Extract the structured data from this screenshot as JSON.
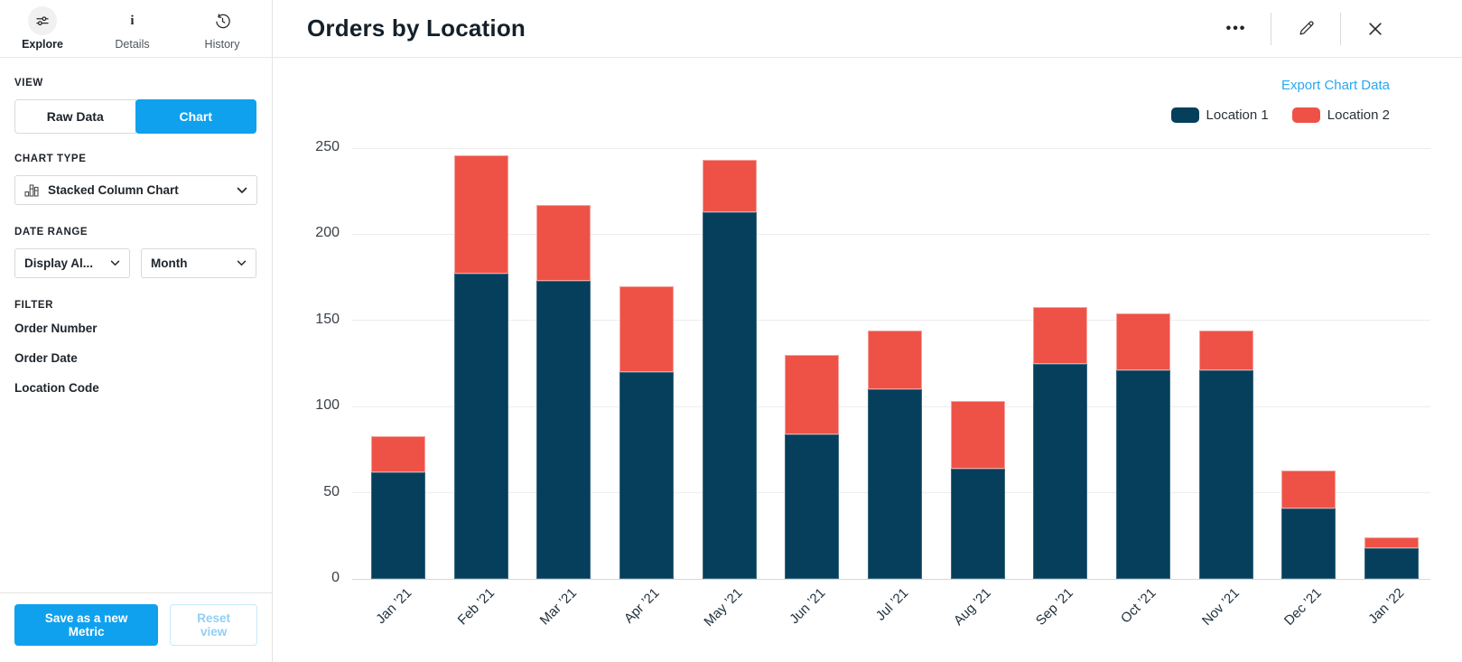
{
  "header": {
    "tabs": [
      {
        "id": "explore",
        "label": "Explore"
      },
      {
        "id": "details",
        "label": "Details"
      },
      {
        "id": "history",
        "label": "History"
      }
    ],
    "title": "Orders by Location"
  },
  "sidebar": {
    "view": {
      "heading": "VIEW",
      "raw_data_label": "Raw Data",
      "chart_label": "Chart",
      "selected": "Chart"
    },
    "chart_type": {
      "heading": "CHART TYPE",
      "selected": "Stacked Column Chart"
    },
    "date_range": {
      "heading": "DATE RANGE",
      "display_selected": "Display Al...",
      "granularity_selected": "Month"
    },
    "filter": {
      "heading": "FILTER",
      "items": [
        "Order Number",
        "Order Date",
        "Location Code"
      ]
    },
    "footer": {
      "save_label": "Save as a new Metric",
      "reset_label": "Reset view"
    }
  },
  "chart": {
    "export_label": "Export Chart Data"
  },
  "colors": {
    "accent": "#10A1EE",
    "link": "#2AA7F1",
    "location1": "#053F5C",
    "location2": "#EE5247"
  },
  "chart_data": {
    "type": "bar",
    "stacked": true,
    "title": "Orders by Location",
    "categories": [
      "Jan ’21",
      "Feb ’21",
      "Mar ’21",
      "Apr ’21",
      "May ’21",
      "Jun ’21",
      "Jul ’21",
      "Aug ’21",
      "Sep ’21",
      "Oct ’21",
      "Nov ’21",
      "Dec ’21",
      "Jan ’22"
    ],
    "series": [
      {
        "name": "Location 1",
        "color": "#053F5C",
        "values": [
          62,
          177,
          173,
          120,
          213,
          84,
          110,
          64,
          125,
          121,
          121,
          41,
          18
        ]
      },
      {
        "name": "Location 2",
        "color": "#EE5247",
        "values": [
          21,
          69,
          44,
          50,
          30,
          46,
          34,
          39,
          33,
          33,
          23,
          22,
          6
        ]
      }
    ],
    "totals": [
      83,
      246,
      217,
      170,
      243,
      130,
      144,
      103,
      158,
      154,
      144,
      63,
      24
    ],
    "xlabel": "",
    "ylabel": "",
    "ylim": [
      0,
      250
    ],
    "yticks": [
      0,
      50,
      100,
      150,
      200,
      250
    ],
    "grid": true,
    "legend_position": "top-right"
  }
}
